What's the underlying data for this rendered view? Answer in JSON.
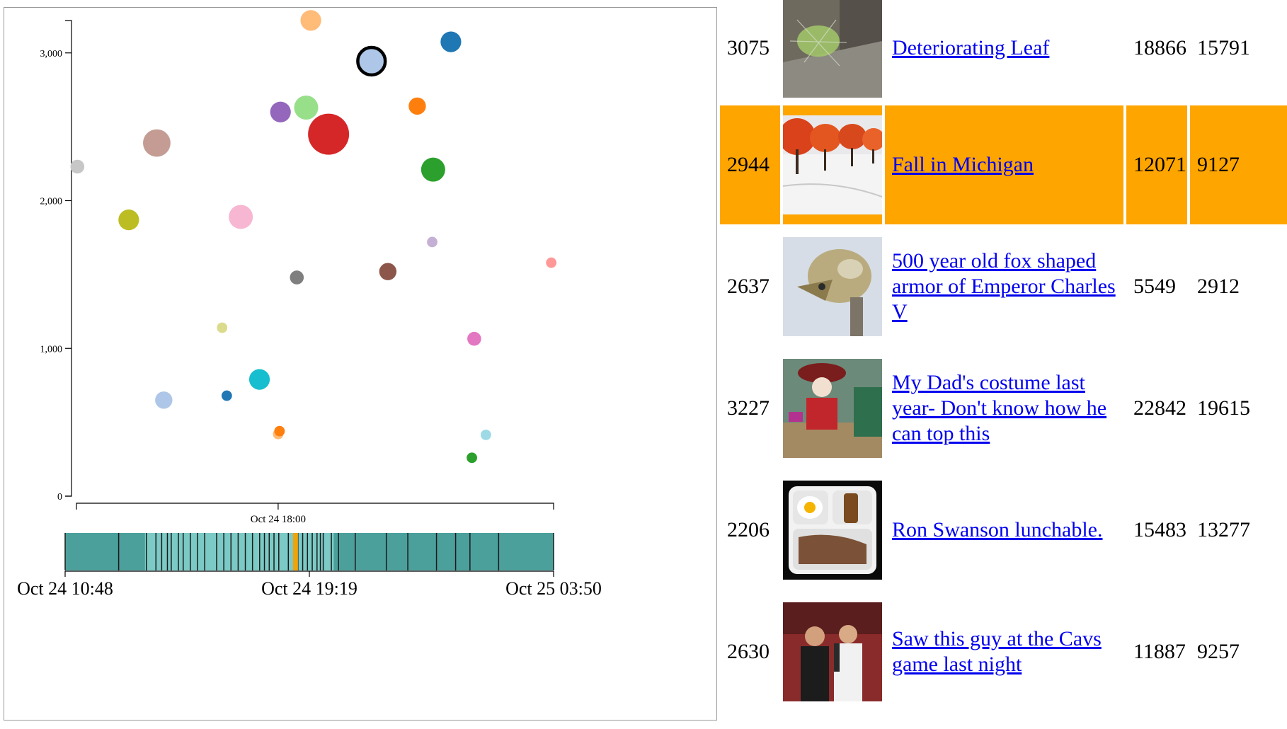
{
  "chart_data": {
    "type": "scatter",
    "title": "",
    "xlabel": "",
    "ylabel": "",
    "x_axis": {
      "domain": [
        "Oct 24 10:48",
        "Oct 25 03:50"
      ],
      "tick_label": "Oct 24 18:00"
    },
    "y_axis": {
      "ylim": [
        0,
        3200
      ],
      "tick_values": [
        0,
        1000,
        2000,
        3000
      ],
      "tick_labels": [
        "0",
        "1,000",
        "2,000",
        "3,000"
      ]
    },
    "grid": false,
    "points": [
      {
        "x": "Oct 24 10:50",
        "y": 2230,
        "size": 2,
        "color": "#c7c7c7"
      },
      {
        "x": "Oct 24 12:40",
        "y": 1870,
        "size": 4,
        "color": "#bcbd22"
      },
      {
        "x": "Oct 24 13:40",
        "y": 2390,
        "size": 6,
        "color": "#c49c94"
      },
      {
        "x": "Oct 24 13:55",
        "y": 650,
        "size": 3,
        "color": "#aec7e8"
      },
      {
        "x": "Oct 24 16:00",
        "y": 1140,
        "size": 1,
        "color": "#dbdb8d"
      },
      {
        "x": "Oct 24 16:10",
        "y": 680,
        "size": 1,
        "color": "#1f77b4"
      },
      {
        "x": "Oct 24 16:40",
        "y": 1890,
        "size": 5,
        "color": "#f7b6d2"
      },
      {
        "x": "Oct 24 17:20",
        "y": 790,
        "size": 4,
        "color": "#17becf"
      },
      {
        "x": "Oct 24 18:00",
        "y": 420,
        "size": 1,
        "color": "#ffbb78"
      },
      {
        "x": "Oct 24 18:03",
        "y": 440,
        "size": 1,
        "color": "#ff7f0e"
      },
      {
        "x": "Oct 24 18:05",
        "y": 2600,
        "size": 4,
        "color": "#9467bd"
      },
      {
        "x": "Oct 24 18:40",
        "y": 1480,
        "size": 2,
        "color": "#7f7f7f"
      },
      {
        "x": "Oct 24 19:00",
        "y": 2630,
        "size": 5,
        "color": "#98df8a"
      },
      {
        "x": "Oct 24 19:10",
        "y": 3220,
        "size": 4,
        "color": "#ffbb78"
      },
      {
        "x": "Oct 24 19:48",
        "y": 2450,
        "size": 10,
        "color": "#d62728"
      },
      {
        "x": "Oct 24 21:20",
        "y": 2944,
        "size": 6,
        "color": "#aec7e8",
        "selected": true
      },
      {
        "x": "Oct 24 21:55",
        "y": 1520,
        "size": 3,
        "color": "#8c564b"
      },
      {
        "x": "Oct 24 22:58",
        "y": 2640,
        "size": 3,
        "color": "#ff7f0e"
      },
      {
        "x": "Oct 24 23:30",
        "y": 1720,
        "size": 1,
        "color": "#c5b0d5"
      },
      {
        "x": "Oct 24 23:32",
        "y": 2210,
        "size": 5,
        "color": "#2ca02c"
      },
      {
        "x": "Oct 25 00:10",
        "y": 3075,
        "size": 4,
        "color": "#1f77b4"
      },
      {
        "x": "Oct 25 00:55",
        "y": 260,
        "size": 1,
        "color": "#2ca02c"
      },
      {
        "x": "Oct 25 01:00",
        "y": 1065,
        "size": 2,
        "color": "#e377c2"
      },
      {
        "x": "Oct 25 01:25",
        "y": 415,
        "size": 1,
        "color": "#9edae5"
      },
      {
        "x": "Oct 25 03:45",
        "y": 1580,
        "size": 1,
        "color": "#ff9896"
      }
    ],
    "brush": {
      "domain": [
        "Oct 24 10:48",
        "Oct 25 03:50"
      ],
      "tick_labels": [
        "Oct 24 10:48",
        "Oct 24 19:19",
        "Oct 25 03:50"
      ],
      "selection": [
        "Oct 24 13:35",
        "Oct 24 20:10"
      ],
      "highlight": "Oct 24 18:50",
      "highlight_color": "#f0a30a",
      "base_color": "#4ca09c",
      "selected_color": "#7bcac6",
      "line_color": "#1a1a1a",
      "events": [
        "Oct 24 10:48",
        "Oct 24 12:40",
        "Oct 24 13:38",
        "Oct 24 13:58",
        "Oct 24 14:10",
        "Oct 24 14:22",
        "Oct 24 14:30",
        "Oct 24 14:45",
        "Oct 24 14:55",
        "Oct 24 15:10",
        "Oct 24 15:25",
        "Oct 24 15:40",
        "Oct 24 16:05",
        "Oct 24 16:20",
        "Oct 24 16:35",
        "Oct 24 16:50",
        "Oct 24 17:05",
        "Oct 24 17:20",
        "Oct 24 17:35",
        "Oct 24 17:45",
        "Oct 24 17:55",
        "Oct 24 18:05",
        "Oct 24 18:15",
        "Oct 24 18:35",
        "Oct 24 18:55",
        "Oct 24 19:05",
        "Oct 24 19:15",
        "Oct 24 19:25",
        "Oct 24 19:35",
        "Oct 24 19:42",
        "Oct 24 19:48",
        "Oct 24 20:05",
        "Oct 24 20:20",
        "Oct 24 20:55",
        "Oct 24 22:00",
        "Oct 24 22:45",
        "Oct 24 23:45",
        "Oct 25 00:25",
        "Oct 25 00:55",
        "Oct 25 01:55",
        "Oct 25 03:50"
      ]
    }
  },
  "table": {
    "rows": [
      {
        "score": "3075",
        "title": "Deteriorating Leaf",
        "ups": "18866",
        "downs": "15791",
        "thumb": "leaf-thumbnail",
        "selected": false
      },
      {
        "score": "2944",
        "title": "Fall in Michigan",
        "ups": "12071",
        "downs": "9127",
        "thumb": "autumn-trees-thumbnail",
        "selected": true
      },
      {
        "score": "2637",
        "title": "500 year old fox shaped armor of Emperor Charles V",
        "ups": "5549",
        "downs": "2912",
        "thumb": "fox-helmet-thumbnail",
        "selected": false
      },
      {
        "score": "3227",
        "title": "My Dad's costume last year- Don't know how he can top this",
        "ups": "22842",
        "downs": "19615",
        "thumb": "costume-thumbnail",
        "selected": false
      },
      {
        "score": "2206",
        "title": "Ron Swanson lunchable.",
        "ups": "15483",
        "downs": "13277",
        "thumb": "lunch-tray-thumbnail",
        "selected": false
      },
      {
        "score": "2630",
        "title": "Saw this guy at the Cavs game last night",
        "ups": "11887",
        "downs": "9257",
        "thumb": "crowd-photo-thumbnail",
        "selected": false
      }
    ]
  },
  "colors": {
    "highlight_row": "#ffa500",
    "link": "#0000ee"
  }
}
